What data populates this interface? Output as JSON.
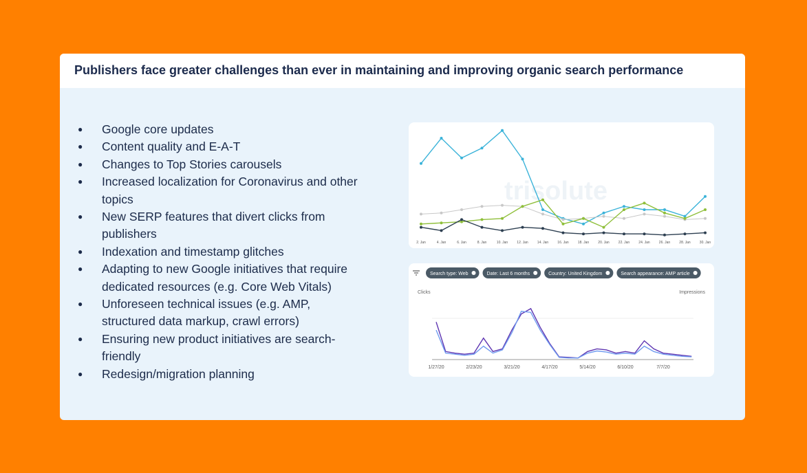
{
  "header": {
    "title": "Publishers face greater challenges than ever in maintaining and improving organic search performance"
  },
  "bullets": [
    "Google core updates",
    "Content quality and E-A-T",
    "Changes to Top Stories carousels",
    "Increased localization for Coronavirus and other topics",
    "New SERP features that divert clicks from publishers",
    "Indexation and timestamp glitches",
    "Adapting to new Google initiatives that require dedicated resources (e.g. Core Web Vitals)",
    "Unforeseen technical issues (e.g. AMP, structured data markup, crawl errors)",
    "Ensuring new product initiatives are search-friendly",
    "Redesign/migration planning"
  ],
  "chart_data": [
    {
      "type": "line",
      "watermark": "trisolute",
      "categories": [
        "2. Jan",
        "4. Jan",
        "6. Jan",
        "8. Jan",
        "10. Jan",
        "12. Jan",
        "14. Jan",
        "16. Jan",
        "18. Jan",
        "20. Jan",
        "22. Jan",
        "24. Jan",
        "26. Jan",
        "28. Jan",
        "30. Jan"
      ],
      "ylim": [
        0,
        100
      ],
      "series": [
        {
          "color": "#3bb3d9",
          "values": [
            67,
            90,
            72,
            81,
            97,
            71,
            25,
            17,
            12,
            22,
            28,
            25,
            25,
            19,
            37
          ]
        },
        {
          "color": "#c8c8c8",
          "values": [
            21,
            22,
            25,
            28,
            29,
            28,
            21,
            16,
            17,
            19,
            17,
            21,
            19,
            16,
            17
          ]
        },
        {
          "color": "#8fbf3a",
          "values": [
            12,
            13,
            14,
            16,
            17,
            28,
            34,
            12,
            17,
            9,
            25,
            31,
            22,
            17,
            25
          ]
        },
        {
          "color": "#2c3e50",
          "values": [
            9,
            6,
            16,
            9,
            6,
            9,
            8,
            4,
            3,
            4,
            3,
            3,
            2,
            3,
            4
          ]
        }
      ]
    },
    {
      "type": "line",
      "filters": [
        "Search type: Web",
        "Date: Last 6 months",
        "Country: United Kingdom",
        "Search appearance: AMP article"
      ],
      "y_label": "Clicks",
      "y2_label": "Impressions",
      "categories": [
        "1/27/20",
        null,
        null,
        null,
        "2/23/20",
        null,
        null,
        null,
        "3/21/20",
        null,
        null,
        null,
        "4/17/20",
        null,
        null,
        null,
        "5/14/20",
        null,
        null,
        null,
        "6/10/20",
        null,
        null,
        null,
        "7/7/20",
        null,
        null,
        null
      ],
      "ylim": [
        0,
        100
      ],
      "y2lim": [
        0,
        100
      ],
      "series": [
        {
          "color": "#5e35b1",
          "values": [
            70,
            15,
            12,
            10,
            12,
            40,
            15,
            20,
            55,
            85,
            95,
            60,
            30,
            5,
            4,
            3,
            15,
            20,
            18,
            12,
            15,
            12,
            35,
            20,
            12,
            10,
            8,
            6
          ]
        },
        {
          "color": "#6f9bf0",
          "axis": "y2",
          "values": [
            55,
            12,
            10,
            8,
            10,
            25,
            12,
            18,
            50,
            90,
            88,
            55,
            28,
            4,
            3,
            3,
            12,
            16,
            14,
            10,
            12,
            10,
            25,
            15,
            10,
            8,
            6,
            5
          ]
        }
      ]
    }
  ]
}
